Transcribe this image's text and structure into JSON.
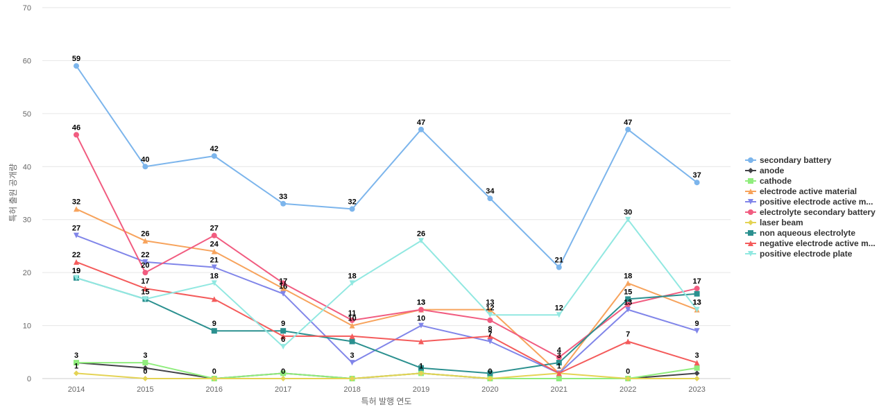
{
  "chart_data": {
    "type": "line",
    "xlabel": "특허 발행 연도",
    "ylabel": "특허 출원 공개량",
    "categories": [
      "2014",
      "2015",
      "2016",
      "2017",
      "2018",
      "2019",
      "2020",
      "2021",
      "2022",
      "2023"
    ],
    "ylim": [
      0,
      70
    ],
    "yticks": [
      0,
      10,
      20,
      30,
      40,
      50,
      60,
      70
    ],
    "grid": true,
    "legend_position": "right",
    "series": [
      {
        "name": "secondary battery",
        "color": "#7cb5ec",
        "marker": "circle",
        "values": [
          59,
          40,
          42,
          33,
          32,
          47,
          34,
          21,
          47,
          37
        ]
      },
      {
        "name": "anode",
        "color": "#434348",
        "marker": "diamond",
        "values": [
          3,
          2,
          0,
          1,
          0,
          1,
          0,
          0,
          0,
          1
        ]
      },
      {
        "name": "cathode",
        "color": "#90ed7d",
        "marker": "square",
        "values": [
          3,
          3,
          0,
          1,
          0,
          1,
          0,
          0,
          0,
          2
        ]
      },
      {
        "name": "electrode active material",
        "color": "#f7a35c",
        "marker": "triangle",
        "values": [
          32,
          26,
          24,
          17,
          10,
          13,
          13,
          1,
          18,
          13
        ]
      },
      {
        "name": "positive electrode active m...",
        "color": "#8085e9",
        "marker": "triangle-down",
        "values": [
          27,
          22,
          21,
          16,
          3,
          10,
          7,
          1,
          13,
          9
        ]
      },
      {
        "name": "electrolyte secondary battery",
        "color": "#f15c80",
        "marker": "circle",
        "values": [
          46,
          20,
          27,
          18,
          11,
          13,
          11,
          4,
          14,
          17
        ]
      },
      {
        "name": "laser beam",
        "color": "#e4d354",
        "marker": "diamond",
        "values": [
          1,
          0,
          0,
          0,
          0,
          1,
          0,
          1,
          0,
          0
        ]
      },
      {
        "name": "non aqueous electrolyte",
        "color": "#2b908f",
        "marker": "square",
        "values": [
          19,
          15,
          9,
          9,
          7,
          2,
          1,
          3,
          15,
          16
        ]
      },
      {
        "name": "negative electrode active m...",
        "color": "#f45b5b",
        "marker": "triangle",
        "values": [
          22,
          17,
          15,
          8,
          8,
          7,
          8,
          1,
          7,
          3
        ]
      },
      {
        "name": "positive electrode plate",
        "color": "#91e8e1",
        "marker": "triangle-down",
        "values": [
          19,
          15,
          18,
          6,
          18,
          26,
          12,
          12,
          30,
          13
        ]
      }
    ],
    "data_labels": [
      {
        "series": 0,
        "points": [
          0,
          1,
          2,
          3,
          4,
          5,
          6,
          7,
          8,
          9
        ]
      },
      {
        "series": 1,
        "points": [
          0,
          6
        ]
      },
      {
        "series": 2,
        "points": [
          1
        ]
      },
      {
        "series": 3,
        "points": [
          0,
          1,
          2,
          3,
          4,
          5,
          6,
          8,
          9
        ]
      },
      {
        "series": 4,
        "points": [
          0,
          1,
          2,
          3,
          4,
          5,
          6,
          8,
          9
        ]
      },
      {
        "series": 5,
        "points": [
          0,
          1,
          2,
          4,
          5,
          7,
          9
        ]
      },
      {
        "series": 6,
        "points": [
          0,
          1,
          2,
          3,
          5,
          7,
          8
        ]
      },
      {
        "series": 7,
        "points": [
          0,
          2,
          3,
          7,
          8
        ]
      },
      {
        "series": 8,
        "points": [
          0,
          1,
          6,
          8,
          9
        ]
      },
      {
        "series": 9,
        "points": [
          0,
          1,
          2,
          3,
          4,
          5,
          6,
          7,
          8,
          9
        ]
      }
    ]
  }
}
